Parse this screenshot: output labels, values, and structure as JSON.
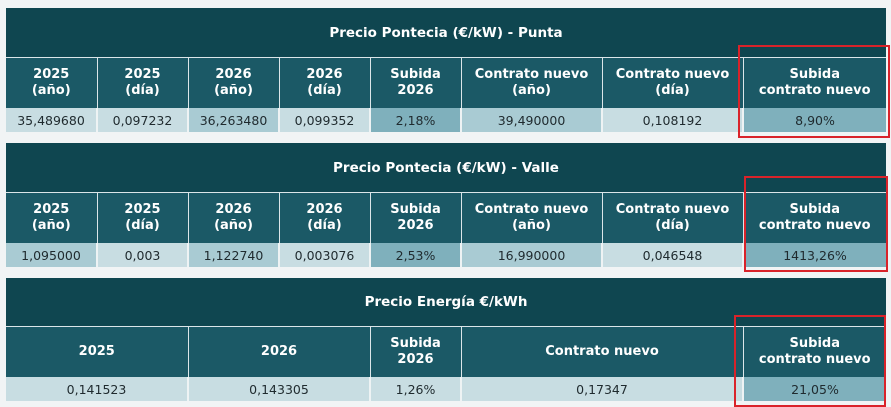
{
  "punta": {
    "title": "Precio Pontecia (€/kW) - Punta",
    "headers": [
      "2025\n(año)",
      "2025\n(día)",
      "2026\n(año)",
      "2026\n(día)",
      "Subida\n2026",
      "Contrato nuevo\n(año)",
      "Contrato nuevo\n(día)",
      "Subida\ncontrato nuevo"
    ],
    "values": [
      "35,489680",
      "0,097232",
      "36,263480",
      "0,099352",
      "2,18%",
      "39,490000",
      "0,108192",
      "8,90%"
    ]
  },
  "valle": {
    "title": "Precio Pontecia (€/kW) - Valle",
    "headers": [
      "2025\n(año)",
      "2025\n(día)",
      "2026\n(año)",
      "2026\n(día)",
      "Subida\n2026",
      "Contrato nuevo\n(año)",
      "Contrato nuevo\n(día)",
      "Subida\ncontrato nuevo"
    ],
    "values": [
      "1,095000",
      "0,003",
      "1,122740",
      "0,003076",
      "2,53%",
      "16,990000",
      "0,046548",
      "1413,26%"
    ]
  },
  "energia": {
    "title": "Precio Energía €/kWh",
    "headers": [
      "2025",
      "2026",
      "Subida\n2026",
      "Contrato nuevo",
      "Subida\ncontrato nuevo"
    ],
    "values": [
      "0,141523",
      "0,143305",
      "1,26%",
      "0,17347",
      "21,05%"
    ]
  }
}
